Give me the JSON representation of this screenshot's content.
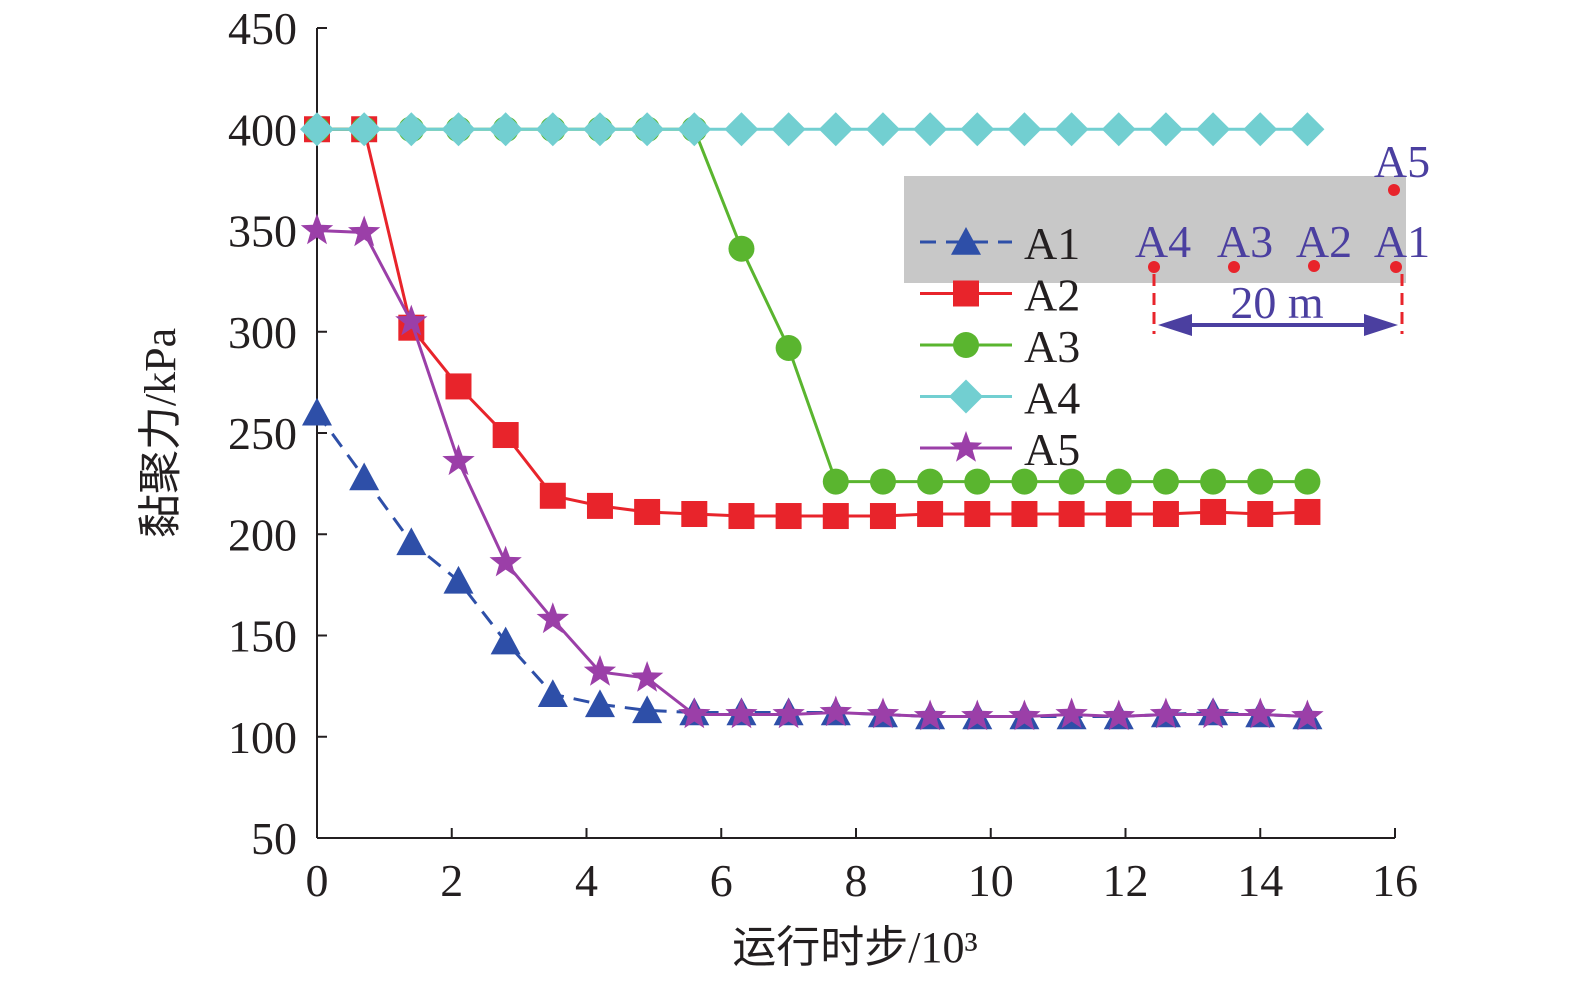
{
  "chart_data": {
    "type": "line",
    "xlabel": "运行时步/10³",
    "ylabel": "黏聚力/kPa",
    "xlim": [
      0,
      16
    ],
    "ylim": [
      50,
      450
    ],
    "xticks": [
      "0",
      "2",
      "4",
      "6",
      "8",
      "10",
      "12",
      "14",
      "16"
    ],
    "yticks": [
      "50",
      "100",
      "150",
      "200",
      "250",
      "300",
      "350",
      "400",
      "450"
    ],
    "x": [
      0,
      0.7,
      1.4,
      2.1,
      2.8,
      3.5,
      4.2,
      4.9,
      5.6,
      6.3,
      7.0,
      7.7,
      8.4,
      9.1,
      9.8,
      10.5,
      11.2,
      11.9,
      12.6,
      13.3,
      14.0,
      14.7
    ],
    "series": [
      {
        "name": "A1",
        "color": "#2e4fa8",
        "marker": "triangle",
        "dash": "dashed",
        "values": [
          260,
          228,
          196,
          177,
          147,
          121,
          116,
          113,
          112,
          112,
          112,
          112,
          111,
          110,
          110,
          110,
          110,
          110,
          111,
          112,
          111,
          110
        ]
      },
      {
        "name": "A2",
        "color": "#e8242b",
        "marker": "square",
        "dash": "solid",
        "values": [
          400,
          400,
          302,
          273,
          249,
          219,
          214,
          211,
          210,
          209,
          209,
          209,
          209,
          210,
          210,
          210,
          210,
          210,
          210,
          211,
          210,
          211
        ]
      },
      {
        "name": "A3",
        "color": "#5ab52f",
        "marker": "circle",
        "dash": "solid",
        "values": [
          400,
          400,
          400,
          400,
          400,
          400,
          400,
          400,
          400,
          341,
          292,
          226,
          226,
          226,
          226,
          226,
          226,
          226,
          226,
          226,
          226,
          226
        ]
      },
      {
        "name": "A4",
        "color": "#72cfd1",
        "marker": "diamond",
        "dash": "solid",
        "values": [
          400,
          400,
          400,
          400,
          400,
          400,
          400,
          400,
          400,
          400,
          400,
          400,
          400,
          400,
          400,
          400,
          400,
          400,
          400,
          400,
          400,
          400
        ]
      },
      {
        "name": "A5",
        "color": "#9b3fa8",
        "marker": "star",
        "dash": "solid",
        "values": [
          350,
          349,
          305,
          236,
          186,
          158,
          132,
          129,
          111,
          111,
          111,
          112,
          111,
          110,
          110,
          110,
          111,
          110,
          111,
          111,
          111,
          110
        ]
      }
    ],
    "legend": "right-center",
    "grid": false,
    "inset": {
      "point_labels": [
        "A4",
        "A3",
        "A2",
        "A1",
        "A5"
      ],
      "dimension_label": "20 m",
      "label_color": "#4b3fa0",
      "point_color": "#e8242b",
      "arrow_color": "#4b3fa0",
      "band_color": "#c8c8c8"
    }
  }
}
